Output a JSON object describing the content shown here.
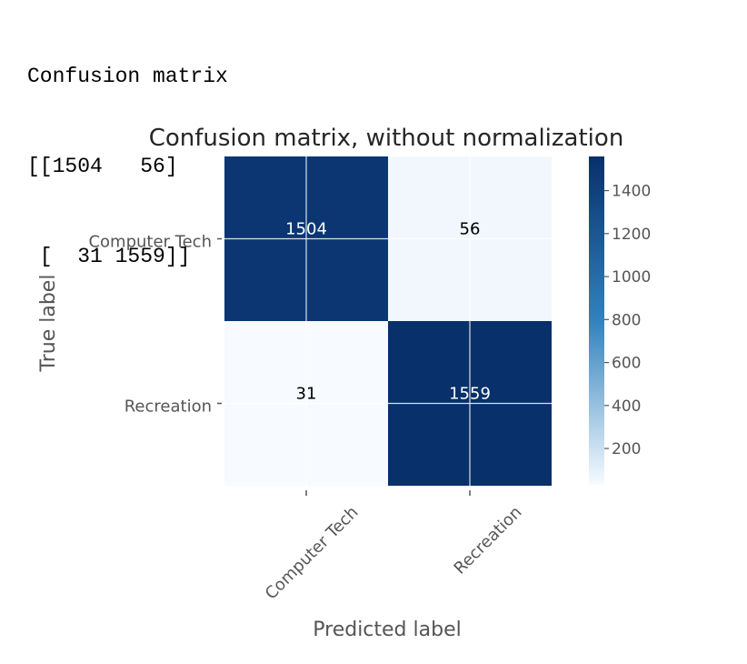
{
  "console": {
    "heading": "Confusion matrix",
    "lines": [
      "[[1504   56]",
      " [  31 1559]]"
    ]
  },
  "chart_data": {
    "type": "heatmap",
    "title": "Confusion matrix, without normalization",
    "xlabel": "Predicted label",
    "ylabel": "True label",
    "x_categories": [
      "Computer Tech",
      "Recreation"
    ],
    "y_categories": [
      "Computer Tech",
      "Recreation"
    ],
    "values": [
      [
        1504,
        56
      ],
      [
        31,
        1559
      ]
    ],
    "colormap": "Blues",
    "color_low": "#f7fbff",
    "color_high": "#08306b",
    "grid": true,
    "colorbar": {
      "range": [
        31,
        1559
      ],
      "ticks": [
        200,
        400,
        600,
        800,
        1000,
        1200,
        1400
      ]
    }
  }
}
